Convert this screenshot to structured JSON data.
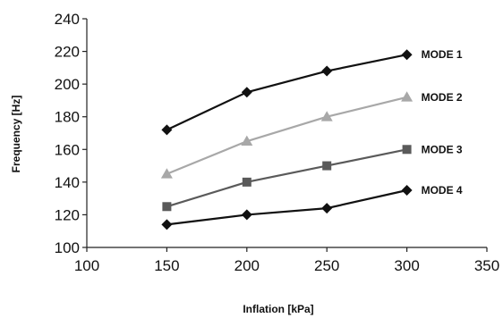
{
  "chart_data": {
    "type": "line",
    "xlabel": "Inflation [kPa]",
    "ylabel": "Frequency [Hz]",
    "xlim": [
      100,
      350
    ],
    "ylim": [
      100,
      240
    ],
    "x_ticks": [
      100,
      150,
      200,
      250,
      300,
      350
    ],
    "y_ticks": [
      100,
      120,
      140,
      160,
      180,
      200,
      220,
      240
    ],
    "grid": false,
    "legend": "inline labels at right end of each series",
    "x": [
      150,
      200,
      250,
      300
    ],
    "series": [
      {
        "name": "MODE 1",
        "values": [
          172,
          195,
          208,
          218
        ],
        "marker": "diamond",
        "color": "#111111"
      },
      {
        "name": "MODE 2",
        "values": [
          145,
          165,
          180,
          192
        ],
        "marker": "triangle",
        "color": "#a8a8a8"
      },
      {
        "name": "MODE 3",
        "values": [
          125,
          140,
          150,
          160
        ],
        "marker": "square",
        "color": "#5a5a5a"
      },
      {
        "name": "MODE 4",
        "values": [
          114,
          120,
          124,
          135
        ],
        "marker": "diamond",
        "color": "#111111"
      }
    ]
  }
}
